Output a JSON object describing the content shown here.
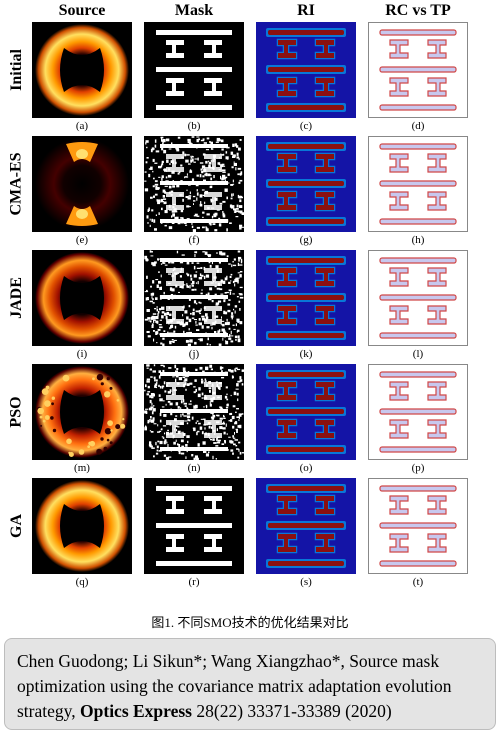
{
  "columns": [
    "Source",
    "Mask",
    "RI",
    "RC vs TP"
  ],
  "rows": [
    {
      "label": "Initial",
      "captions": [
        "(a)",
        "(b)",
        "(c)",
        "(d)"
      ],
      "source_style": "ring-bright",
      "mask_style": "clean"
    },
    {
      "label": "CMA-ES",
      "captions": [
        "(e)",
        "(f)",
        "(g)",
        "(h)"
      ],
      "source_style": "dark-sparse",
      "mask_style": "noisy"
    },
    {
      "label": "JADE",
      "captions": [
        "(i)",
        "(j)",
        "(k)",
        "(l)"
      ],
      "source_style": "ring-red",
      "mask_style": "noisy"
    },
    {
      "label": "PSO",
      "captions": [
        "(m)",
        "(n)",
        "(o)",
        "(p)"
      ],
      "source_style": "ring-speckle",
      "mask_style": "noisy"
    },
    {
      "label": "GA",
      "captions": [
        "(q)",
        "(r)",
        "(s)",
        "(t)"
      ],
      "source_style": "ring-bright",
      "mask_style": "clean"
    }
  ],
  "figure_caption": "图1. 不同SMO技术的优化结果对比",
  "citation": {
    "authors": "Chen Guodong; Li Sikun*; Wang Xiangzhao*,",
    "title": "Source mask optimization using the covariance matrix adaptation evolution strategy,",
    "journal": "Optics Express",
    "details": "28(22) 33371-33389 (2020)"
  },
  "colors": {
    "ri_background": "#1414a6",
    "ri_pattern": "#8b1010",
    "rc_outline": "#d04848",
    "rc_fill": "#c8c8ee"
  }
}
